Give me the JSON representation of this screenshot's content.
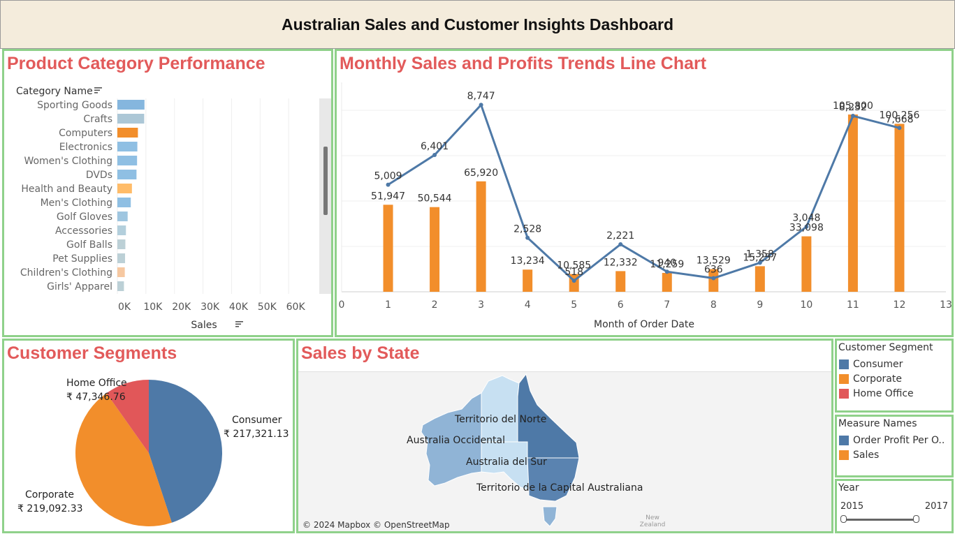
{
  "colors": {
    "title_red": "#e25a5a",
    "panel_border": "#8fd18a",
    "header_bg": "#f4ecdc",
    "consumer": "#4e79a7",
    "corporate": "#f28e2b",
    "home_office": "#e15759",
    "light_blue": "#a0cbe8",
    "line_blue": "#4e79a7"
  },
  "header": {
    "title": "Australian Sales and Customer Insights Dashboard"
  },
  "category_panel": {
    "title": "Product Category Performance",
    "column_header": "Category Name",
    "x_axis_title": "Sales",
    "chart_data": {
      "type": "bar",
      "orientation": "horizontal",
      "categories": [
        "Sporting Goods",
        "Crafts",
        "Computers",
        "Electronics",
        "Women's Clothing",
        "DVDs",
        "Health and Beauty",
        "Men's Clothing",
        "Golf Gloves",
        "Accessories",
        "Golf Balls",
        "Pet Supplies",
        "Children's Clothing",
        "Girls' Apparel"
      ],
      "values": [
        9500,
        9400,
        7200,
        7000,
        6900,
        6700,
        5100,
        4700,
        3600,
        3000,
        2800,
        2700,
        2600,
        2300
      ],
      "bar_colors": [
        "#85b6de",
        "#acc7d6",
        "#f28e2b",
        "#8fbfe3",
        "#8fbfe3",
        "#8fbfe3",
        "#ffbc69",
        "#8fbfe3",
        "#9fc6e0",
        "#b3cfdc",
        "#bcd0d6",
        "#bcd0d6",
        "#f6c8a1",
        "#bcd0d6"
      ],
      "xticks": [
        "0K",
        "10K",
        "20K",
        "30K",
        "40K",
        "50K",
        "60K"
      ],
      "xlim": [
        0,
        70000
      ]
    }
  },
  "trend_panel": {
    "title": "Monthly Sales and Profits Trends Line Chart",
    "x_axis_title": "Month of Order Date",
    "chart_data": {
      "type": "bar+line",
      "x": [
        1,
        2,
        3,
        4,
        5,
        6,
        7,
        8,
        9,
        10,
        11,
        12
      ],
      "xticks": [
        "0",
        "1",
        "2",
        "3",
        "4",
        "5",
        "6",
        "7",
        "8",
        "9",
        "10",
        "11",
        "12",
        "13"
      ],
      "xlim": [
        0,
        13
      ],
      "series": [
        {
          "name": "Sales",
          "type": "bar",
          "values": [
            51947,
            50544,
            65920,
            13234,
            10585,
            12332,
            11259,
            13529,
            15257,
            33098,
            105800,
            100256
          ],
          "labels": [
            "51,947",
            "50,544",
            "65,920",
            "13,234",
            "10,585",
            "12,332",
            "11,259",
            "13,529",
            "15,257",
            "33,098",
            "105,800",
            "100,256"
          ]
        },
        {
          "name": "Order Profit Per Order",
          "type": "line",
          "values": [
            5009,
            6401,
            8747,
            2528,
            518,
            2221,
            940,
            636,
            1358,
            3048,
            8232,
            7668
          ],
          "labels": [
            "5,009",
            "6,401",
            "8,747",
            "2,528",
            "518",
            "2,221",
            "940",
            "636",
            "1,358",
            "3,048",
            "8,232",
            "7,668"
          ]
        }
      ],
      "sales_ylim": [
        0,
        125000
      ],
      "profit_ylim": [
        0,
        9800
      ]
    }
  },
  "segments_panel": {
    "title": "Customer Segments",
    "chart_data": {
      "type": "pie",
      "slices": [
        {
          "label": "Consumer",
          "value": 217321.13,
          "display": "₹ 217,321.13",
          "color": "#4e79a7"
        },
        {
          "label": "Corporate",
          "value": 219092.33,
          "display": "₹ 219,092.33",
          "color": "#f28e2b"
        },
        {
          "label": "Home Office",
          "value": 47346.76,
          "display": "₹ 47,346.76",
          "color": "#e15759"
        }
      ]
    }
  },
  "map_panel": {
    "title": "Sales by State",
    "labels": {
      "nt": "Territorio del Norte",
      "wa": "Australia Occidental",
      "sa": "Australia del Sur",
      "act": "Territorio de la Capital Australiana",
      "nz_line1": "New",
      "nz_line2": "Zealand"
    },
    "attribution": "© 2024 Mapbox © OpenStreetMap"
  },
  "legend_segment": {
    "title": "Customer Segment",
    "items": [
      {
        "label": "Consumer",
        "color": "#4e79a7"
      },
      {
        "label": "Corporate",
        "color": "#f28e2b"
      },
      {
        "label": "Home Office",
        "color": "#e15759"
      }
    ]
  },
  "legend_measure": {
    "title": "Measure Names",
    "items": [
      {
        "label": "Order Profit Per O..",
        "color": "#4e79a7"
      },
      {
        "label": "Sales",
        "color": "#f28e2b"
      }
    ]
  },
  "year_filter": {
    "title": "Year",
    "min_label": "2015",
    "max_label": "2017",
    "range": [
      2015,
      2017
    ],
    "selected": [
      2015,
      2017
    ]
  }
}
